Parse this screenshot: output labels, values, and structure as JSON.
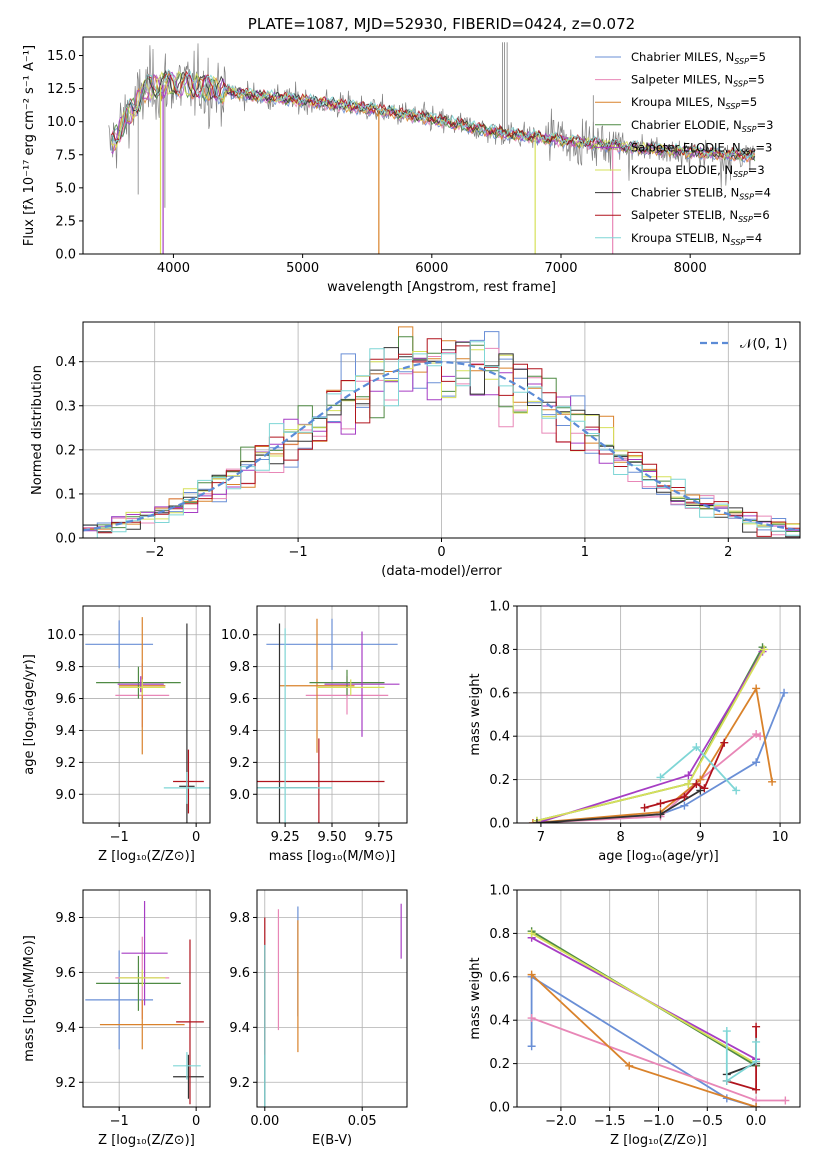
{
  "chart_data": [
    {
      "id": "spectrum",
      "type": "line",
      "title": "PLATE=1087, MJD=52930, FIBERID=0424, z=0.072",
      "xlabel": "wavelength [Angstrom, rest frame]",
      "ylabel": "Flux [fλ 10⁻¹⁷ erg cm⁻² s⁻¹ A⁻¹]",
      "xlim": [
        3300,
        8850
      ],
      "ylim": [
        0,
        16.4
      ],
      "xticks": [
        4000,
        5000,
        6000,
        7000,
        8000
      ],
      "yticks": [
        0.0,
        2.5,
        5.0,
        7.5,
        10.0,
        12.5,
        15.0
      ],
      "grid": false,
      "legend_position": "upper-right",
      "legend": [
        {
          "label": "Chabrier MILES, N",
          "sub": "SSP",
          "tail": "=5",
          "color": "#6a8fd6"
        },
        {
          "label": "Salpeter MILES, N",
          "sub": "SSP",
          "tail": "=5",
          "color": "#e887b7"
        },
        {
          "label": "Kroupa MILES, N",
          "sub": "SSP",
          "tail": "=5",
          "color": "#d9822b"
        },
        {
          "label": "Chabrier ELODIE, N",
          "sub": "SSP",
          "tail": "=3",
          "color": "#4f8a44"
        },
        {
          "label": "Salpeter ELODIE, N",
          "sub": "SSP",
          "tail": "=3",
          "color": "#a63dc4"
        },
        {
          "label": "Kroupa ELODIE, N",
          "sub": "SSP",
          "tail": "=3",
          "color": "#d6e05a"
        },
        {
          "label": "Chabrier STELIB, N",
          "sub": "SSP",
          "tail": "=4",
          "color": "#333333"
        },
        {
          "label": "Salpeter STELIB, N",
          "sub": "SSP",
          "tail": "=6",
          "color": "#b0141d"
        },
        {
          "label": "Kroupa STELIB, N",
          "sub": "SSP",
          "tail": "=4",
          "color": "#7fd6d6"
        }
      ],
      "continuum": [
        [
          3500,
          8.0
        ],
        [
          3650,
          10.5
        ],
        [
          3800,
          12.6
        ],
        [
          4000,
          12.9
        ],
        [
          4300,
          12.5
        ],
        [
          4600,
          12.0
        ],
        [
          5000,
          11.6
        ],
        [
          5500,
          11.0
        ],
        [
          6000,
          10.2
        ],
        [
          6500,
          9.2
        ],
        [
          7000,
          8.6
        ],
        [
          7500,
          8.1
        ],
        [
          8000,
          7.7
        ],
        [
          8500,
          7.4
        ]
      ],
      "data_color": "#808080"
    },
    {
      "id": "residuals",
      "type": "histogram",
      "xlabel": "(data-model)/error",
      "ylabel": "Normed distribution",
      "xlim": [
        -2.5,
        2.5
      ],
      "ylim": [
        0,
        0.49
      ],
      "xticks": [
        -2,
        -1,
        0,
        1,
        2
      ],
      "yticks": [
        0.0,
        0.1,
        0.2,
        0.3,
        0.4
      ],
      "grid": true,
      "legend_position": "upper-right",
      "legend": "𝒩(0, 1)",
      "normal_color": "#5b8bd6",
      "bin_width": 0.1
    },
    {
      "id": "age-vs-Z",
      "type": "scatter",
      "xlabel": "Z [log₁₀(Z/Z⊙)]",
      "ylabel": "age  [log₁₀(age/yr)]",
      "xlim": [
        -1.47,
        0.18
      ],
      "ylim": [
        8.82,
        10.18
      ],
      "xticks": [
        -1,
        0
      ],
      "yticks": [
        9.0,
        9.2,
        9.4,
        9.6,
        9.8,
        10.0
      ],
      "grid": true,
      "points": [
        {
          "color": "#6a8fd6",
          "x": -1.0,
          "y": 9.94,
          "xerr": 0.44,
          "yerr": 0.15
        },
        {
          "color": "#e887b7",
          "x": -0.7,
          "y": 9.62,
          "xerr": 0.35,
          "yerr": 0.2
        },
        {
          "color": "#d9822b",
          "x": -0.7,
          "y": 9.68,
          "xerr": 0.3,
          "yerr": 0.43
        },
        {
          "color": "#4f8a44",
          "x": -0.75,
          "y": 9.7,
          "xerr": 0.55,
          "yerr": 0.1
        },
        {
          "color": "#a63dc4",
          "x": -0.72,
          "y": 9.69,
          "xerr": 0.3,
          "yerr": 0.05
        },
        {
          "color": "#d6e05a",
          "x": -0.7,
          "y": 9.67,
          "xerr": 0.3,
          "yerr": 0.05
        },
        {
          "color": "#333333",
          "x": -0.12,
          "y": 9.05,
          "xerr": 0.1,
          "yerr": 1.02
        },
        {
          "color": "#b0141d",
          "x": -0.1,
          "y": 9.08,
          "xerr": 0.2,
          "yerr": 0.2
        },
        {
          "color": "#7fd6d6",
          "x": -0.12,
          "y": 9.04,
          "xerr": 0.3,
          "yerr": 0.1
        }
      ]
    },
    {
      "id": "age-vs-mass",
      "type": "scatter",
      "xlabel": "mass [log₁₀(M/M⊙)]",
      "ylabel": "",
      "xlim": [
        9.1,
        9.9
      ],
      "ylim": [
        8.82,
        10.18
      ],
      "xticks": [
        9.25,
        9.5,
        9.75
      ],
      "yticks": [
        9.0,
        9.2,
        9.4,
        9.6,
        9.8,
        10.0
      ],
      "grid": true,
      "points": [
        {
          "color": "#6a8fd6",
          "x": 9.5,
          "y": 9.94,
          "xerr": 0.35,
          "yerr": 0.16
        },
        {
          "color": "#e887b7",
          "x": 9.58,
          "y": 9.62,
          "xerr": 0.22,
          "yerr": 0.12
        },
        {
          "color": "#d9822b",
          "x": 9.42,
          "y": 9.68,
          "xerr": 0.2,
          "yerr": 0.42
        },
        {
          "color": "#4f8a44",
          "x": 9.58,
          "y": 9.7,
          "xerr": 0.2,
          "yerr": 0.08
        },
        {
          "color": "#a63dc4",
          "x": 9.66,
          "y": 9.69,
          "xerr": 0.2,
          "yerr": 0.33
        },
        {
          "color": "#d6e05a",
          "x": 9.6,
          "y": 9.67,
          "xerr": 0.18,
          "yerr": 0.05
        },
        {
          "color": "#333333",
          "x": 9.22,
          "y": 9.04,
          "xerr": 0.2,
          "yerr": 1.03
        },
        {
          "color": "#b0141d",
          "x": 9.43,
          "y": 9.08,
          "xerr": 0.35,
          "yerr": 0.27
        },
        {
          "color": "#7fd6d6",
          "x": 9.25,
          "y": 9.04,
          "xerr": 0.25,
          "yerr": 1.0
        }
      ]
    },
    {
      "id": "massweight-vs-age",
      "type": "line",
      "xlabel": "age  [log₁₀(age/yr)]",
      "ylabel": "mass weight",
      "xlim": [
        6.7,
        10.25
      ],
      "ylim": [
        0,
        1.0
      ],
      "xticks": [
        7,
        8,
        9,
        10
      ],
      "yticks": [
        0.0,
        0.2,
        0.4,
        0.6,
        0.8,
        1.0
      ],
      "grid": true,
      "series": [
        {
          "color": "#6a8fd6",
          "points": [
            [
              6.9,
              0.0
            ],
            [
              8.5,
              0.04
            ],
            [
              8.8,
              0.08
            ],
            [
              9.7,
              0.28
            ],
            [
              10.05,
              0.6
            ]
          ]
        },
        {
          "color": "#e887b7",
          "points": [
            [
              6.9,
              0.0
            ],
            [
              8.5,
              0.03
            ],
            [
              9.0,
              0.2
            ],
            [
              9.7,
              0.41
            ],
            [
              9.75,
              0.4
            ]
          ]
        },
        {
          "color": "#d9822b",
          "points": [
            [
              6.9,
              0.0
            ],
            [
              8.5,
              0.05
            ],
            [
              9.0,
              0.2
            ],
            [
              9.7,
              0.62
            ],
            [
              9.9,
              0.19
            ]
          ]
        },
        {
          "color": "#4f8a44",
          "points": [
            [
              6.95,
              0.01
            ],
            [
              8.85,
              0.18
            ],
            [
              9.78,
              0.81
            ]
          ]
        },
        {
          "color": "#a63dc4",
          "points": [
            [
              6.95,
              0.0
            ],
            [
              8.85,
              0.22
            ],
            [
              9.78,
              0.79
            ]
          ]
        },
        {
          "color": "#d6e05a",
          "points": [
            [
              6.95,
              0.01
            ],
            [
              8.85,
              0.18
            ],
            [
              9.8,
              0.8
            ]
          ]
        },
        {
          "color": "#333333",
          "points": [
            [
              6.95,
              0.0
            ],
            [
              8.5,
              0.04
            ],
            [
              9.0,
              0.15
            ]
          ]
        },
        {
          "color": "#b0141d",
          "points": [
            [
              8.3,
              0.07
            ],
            [
              8.5,
              0.09
            ],
            [
              8.8,
              0.12
            ],
            [
              8.95,
              0.18
            ],
            [
              9.05,
              0.16
            ],
            [
              9.3,
              0.37
            ]
          ]
        },
        {
          "color": "#7fd6d6",
          "points": [
            [
              8.5,
              0.21
            ],
            [
              8.95,
              0.35
            ],
            [
              9.45,
              0.15
            ]
          ]
        }
      ]
    },
    {
      "id": "mass-vs-Z",
      "type": "scatter",
      "xlabel": "Z [log₁₀(Z/Z⊙)]",
      "ylabel": "mass [log₁₀(M/M⊙)]",
      "xlim": [
        -1.47,
        0.18
      ],
      "ylim": [
        9.11,
        9.9
      ],
      "xticks": [
        -1,
        0
      ],
      "yticks": [
        9.2,
        9.4,
        9.6,
        9.8
      ],
      "grid": true,
      "points": [
        {
          "color": "#6a8fd6",
          "x": -1.0,
          "y": 9.5,
          "xerr": 0.44,
          "yerr": 0.18
        },
        {
          "color": "#e887b7",
          "x": -0.7,
          "y": 9.58,
          "xerr": 0.35,
          "yerr": 0.15
        },
        {
          "color": "#d9822b",
          "x": -0.7,
          "y": 9.41,
          "xerr": 0.55,
          "yerr": 0.09
        },
        {
          "color": "#4f8a44",
          "x": -0.75,
          "y": 9.56,
          "xerr": 0.55,
          "yerr": 0.1
        },
        {
          "color": "#a63dc4",
          "x": -0.67,
          "y": 9.67,
          "xerr": 0.3,
          "yerr": 0.19
        },
        {
          "color": "#d6e05a",
          "x": -0.7,
          "y": 9.58,
          "xerr": 0.3,
          "yerr": 0.03
        },
        {
          "color": "#333333",
          "x": -0.1,
          "y": 9.22,
          "xerr": 0.2,
          "yerr": 0.08
        },
        {
          "color": "#b0141d",
          "x": -0.08,
          "y": 9.42,
          "xerr": 0.18,
          "yerr": 0.3
        },
        {
          "color": "#7fd6d6",
          "x": -0.12,
          "y": 9.26,
          "xerr": 0.18,
          "yerr": 0.05
        }
      ]
    },
    {
      "id": "mass-vs-EBV",
      "type": "scatter",
      "xlabel": "E(B-V)",
      "ylabel": "",
      "xlim": [
        -0.004,
        0.073
      ],
      "ylim": [
        9.11,
        9.9
      ],
      "xticks": [
        0.0,
        0.05
      ],
      "xticklabels": [
        "0.00",
        "0.05"
      ],
      "yticks": [
        9.2,
        9.4,
        9.6,
        9.8
      ],
      "grid": true,
      "points": [
        {
          "color": "#6a8fd6",
          "x": 0.017,
          "y": 9.64,
          "xerr": 0,
          "yerr": 0.2
        },
        {
          "color": "#e887b7",
          "x": 0.007,
          "y": 9.61,
          "xerr": 0,
          "yerr": 0.22
        },
        {
          "color": "#d9822b",
          "x": 0.017,
          "y": 9.55,
          "xerr": 0,
          "yerr": 0.24
        },
        {
          "color": "#4f8a44",
          "x": 0.0,
          "y": 9.5,
          "xerr": 0,
          "yerr": 0.15
        },
        {
          "color": "#a63dc4",
          "x": 0.07,
          "y": 9.75,
          "xerr": 0,
          "yerr": 0.1
        },
        {
          "color": "#d6e05a",
          "x": 0.0,
          "y": 9.58,
          "xerr": 0,
          "yerr": 0.1
        },
        {
          "color": "#333333",
          "x": 0.0,
          "y": 9.4,
          "xerr": 0,
          "yerr": 0.3
        },
        {
          "color": "#b0141d",
          "x": 0.0,
          "y": 9.55,
          "xerr": 0,
          "yerr": 0.25
        },
        {
          "color": "#7fd6d6",
          "x": 0.0,
          "y": 9.4,
          "xerr": 0,
          "yerr": 0.3
        }
      ]
    },
    {
      "id": "massweight-vs-Z",
      "type": "line",
      "xlabel": "Z [log₁₀(Z/Z⊙)]",
      "ylabel": "mass weight",
      "xlim": [
        -2.45,
        0.45
      ],
      "ylim": [
        0,
        1.0
      ],
      "xticks": [
        -2.0,
        -1.5,
        -1.0,
        -0.5,
        0.0
      ],
      "yticks": [
        0.0,
        0.2,
        0.4,
        0.6,
        0.8,
        1.0
      ],
      "grid": true,
      "series": [
        {
          "color": "#6a8fd6",
          "points": [
            [
              -2.3,
              0.28
            ],
            [
              -2.3,
              0.6
            ],
            [
              -0.3,
              0.04
            ],
            [
              0.0,
              0.0
            ]
          ]
        },
        {
          "color": "#e887b7",
          "points": [
            [
              -2.3,
              0.41
            ],
            [
              0.0,
              0.03
            ],
            [
              0.3,
              0.03
            ]
          ]
        },
        {
          "color": "#d9822b",
          "points": [
            [
              -2.3,
              0.61
            ],
            [
              -1.3,
              0.19
            ],
            [
              0.0,
              0.0
            ]
          ]
        },
        {
          "color": "#4f8a44",
          "points": [
            [
              -2.3,
              0.81
            ],
            [
              0.0,
              0.19
            ]
          ]
        },
        {
          "color": "#a63dc4",
          "points": [
            [
              -2.3,
              0.78
            ],
            [
              0.0,
              0.22
            ]
          ]
        },
        {
          "color": "#d6e05a",
          "points": [
            [
              -2.3,
              0.8
            ],
            [
              0.0,
              0.2
            ]
          ]
        },
        {
          "color": "#333333",
          "points": [
            [
              -0.3,
              0.15
            ],
            [
              0.0,
              0.2
            ]
          ]
        },
        {
          "color": "#b0141d",
          "points": [
            [
              -0.3,
              0.12
            ],
            [
              0.0,
              0.08
            ],
            [
              0.0,
              0.37
            ]
          ]
        },
        {
          "color": "#7fd6d6",
          "points": [
            [
              -0.3,
              0.35
            ],
            [
              -0.3,
              0.12
            ],
            [
              0.0,
              0.21
            ],
            [
              0.0,
              0.3
            ]
          ]
        }
      ]
    }
  ]
}
